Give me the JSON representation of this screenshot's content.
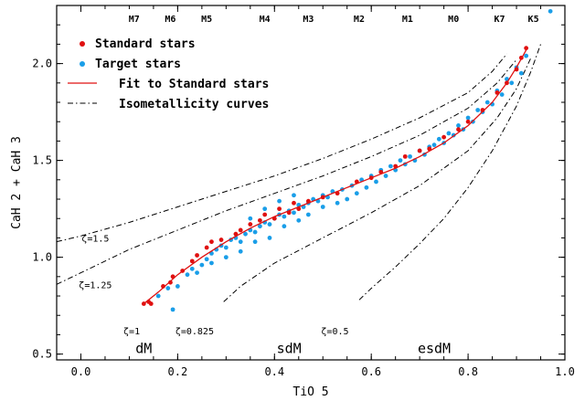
{
  "chart_data": {
    "type": "scatter",
    "xlabel": "TiO 5",
    "ylabel": "CaH 2 + CaH 3",
    "xlim": [
      -0.05,
      1.0
    ],
    "ylim": [
      0.47,
      2.3
    ],
    "x_ticks": [
      0.0,
      0.2,
      0.4,
      0.6,
      0.8,
      1.0
    ],
    "x_tick_labels": [
      "0.0",
      "0.2",
      "0.4",
      "0.6",
      "0.8",
      "1.0"
    ],
    "y_ticks": [
      0.5,
      1.0,
      1.5,
      2.0
    ],
    "y_tick_labels": [
      "0.5",
      "1.0",
      "1.5",
      "2.0"
    ],
    "grid": false,
    "legend": {
      "placement": "top-left",
      "entries": [
        {
          "label": "Standard stars",
          "marker": "dot",
          "color": "#e01010"
        },
        {
          "label": "Target stars",
          "marker": "dot",
          "color": "#1a9ee8"
        },
        {
          "label": "Fit to Standard stars",
          "marker": "line",
          "color": "#e01010"
        },
        {
          "label": "Isometallicity curves",
          "marker": "dashdot",
          "color": "#000000"
        }
      ]
    },
    "spectral_types": [
      {
        "label": "M7",
        "x": 0.11
      },
      {
        "label": "M6",
        "x": 0.185
      },
      {
        "label": "M5",
        "x": 0.26
      },
      {
        "label": "M4",
        "x": 0.38
      },
      {
        "label": "M3",
        "x": 0.47
      },
      {
        "label": "M2",
        "x": 0.575
      },
      {
        "label": "M1",
        "x": 0.675
      },
      {
        "label": "M0",
        "x": 0.77
      },
      {
        "label": "K7",
        "x": 0.865
      },
      {
        "label": "K5",
        "x": 0.935
      }
    ],
    "fit_curve": {
      "name": "Fit to Standard stars",
      "x": [
        0.13,
        0.16,
        0.2,
        0.25,
        0.3,
        0.35,
        0.4,
        0.45,
        0.5,
        0.55,
        0.6,
        0.65,
        0.7,
        0.75,
        0.8,
        0.85,
        0.88,
        0.9,
        0.92
      ],
      "y": [
        0.76,
        0.82,
        0.91,
        1.0,
        1.08,
        1.15,
        1.21,
        1.26,
        1.31,
        1.36,
        1.41,
        1.46,
        1.52,
        1.59,
        1.68,
        1.8,
        1.9,
        1.98,
        2.07
      ]
    },
    "isometallicity_curves": [
      {
        "label": "ζ=1.5",
        "x": [
          -0.05,
          0.0,
          0.1,
          0.2,
          0.3,
          0.4,
          0.5,
          0.6,
          0.7,
          0.8,
          0.85,
          0.88
        ],
        "y": [
          1.08,
          1.11,
          1.18,
          1.26,
          1.34,
          1.42,
          1.51,
          1.61,
          1.72,
          1.85,
          1.96,
          2.05
        ]
      },
      {
        "label": "ζ=1.25",
        "x": [
          -0.05,
          0.0,
          0.1,
          0.2,
          0.3,
          0.4,
          0.5,
          0.6,
          0.7,
          0.8,
          0.86,
          0.9
        ],
        "y": [
          0.86,
          0.92,
          1.04,
          1.14,
          1.24,
          1.33,
          1.42,
          1.52,
          1.63,
          1.77,
          1.9,
          2.02
        ]
      },
      {
        "label": "ζ=0.825",
        "x": [
          0.295,
          0.33,
          0.4,
          0.5,
          0.6,
          0.7,
          0.8,
          0.86,
          0.9,
          0.93
        ],
        "y": [
          0.77,
          0.85,
          0.97,
          1.1,
          1.23,
          1.37,
          1.55,
          1.72,
          1.87,
          2.03
        ]
      },
      {
        "label": "ζ=0.5",
        "x": [
          0.575,
          0.6,
          0.65,
          0.7,
          0.75,
          0.8,
          0.85,
          0.9,
          0.93,
          0.95
        ],
        "y": [
          0.78,
          0.84,
          0.95,
          1.07,
          1.2,
          1.36,
          1.55,
          1.78,
          1.96,
          2.1
        ]
      }
    ],
    "curve_labels": [
      {
        "label": "ζ=1.5",
        "x": 0.03,
        "y": 1.1
      },
      {
        "label": "ζ=1.25",
        "x": 0.03,
        "y": 0.86
      },
      {
        "label": "ζ=1",
        "x": 0.105,
        "y": 0.62
      },
      {
        "label": "ζ=0.825",
        "x": 0.235,
        "y": 0.62
      },
      {
        "label": "ζ=0.5",
        "x": 0.525,
        "y": 0.62
      }
    ],
    "regions": [
      {
        "label": "dM",
        "x": 0.13,
        "y": 0.53
      },
      {
        "label": "sdM",
        "x": 0.43,
        "y": 0.53
      },
      {
        "label": "esdM",
        "x": 0.73,
        "y": 0.53
      }
    ],
    "standard_stars": {
      "name": "Standard stars",
      "points": [
        [
          0.13,
          0.76
        ],
        [
          0.14,
          0.77
        ],
        [
          0.145,
          0.76
        ],
        [
          0.17,
          0.85
        ],
        [
          0.185,
          0.87
        ],
        [
          0.19,
          0.9
        ],
        [
          0.21,
          0.93
        ],
        [
          0.23,
          0.98
        ],
        [
          0.24,
          1.01
        ],
        [
          0.26,
          1.05
        ],
        [
          0.27,
          1.08
        ],
        [
          0.29,
          1.09
        ],
        [
          0.32,
          1.12
        ],
        [
          0.33,
          1.14
        ],
        [
          0.35,
          1.17
        ],
        [
          0.37,
          1.19
        ],
        [
          0.38,
          1.22
        ],
        [
          0.4,
          1.2
        ],
        [
          0.41,
          1.25
        ],
        [
          0.43,
          1.23
        ],
        [
          0.44,
          1.28
        ],
        [
          0.45,
          1.25
        ],
        [
          0.47,
          1.29
        ],
        [
          0.5,
          1.31
        ],
        [
          0.53,
          1.33
        ],
        [
          0.57,
          1.39
        ],
        [
          0.6,
          1.41
        ],
        [
          0.62,
          1.44
        ],
        [
          0.65,
          1.47
        ],
        [
          0.67,
          1.52
        ],
        [
          0.7,
          1.55
        ],
        [
          0.72,
          1.56
        ],
        [
          0.75,
          1.62
        ],
        [
          0.78,
          1.66
        ],
        [
          0.8,
          1.7
        ],
        [
          0.83,
          1.76
        ],
        [
          0.86,
          1.85
        ],
        [
          0.88,
          1.9
        ],
        [
          0.9,
          1.97
        ],
        [
          0.91,
          2.03
        ],
        [
          0.92,
          2.08
        ]
      ]
    },
    "target_stars": {
      "name": "Target stars",
      "points": [
        [
          0.19,
          0.73
        ],
        [
          0.2,
          0.85
        ],
        [
          0.22,
          0.91
        ],
        [
          0.23,
          0.94
        ],
        [
          0.25,
          0.96
        ],
        [
          0.26,
          0.99
        ],
        [
          0.27,
          1.02
        ],
        [
          0.28,
          1.04
        ],
        [
          0.29,
          1.06
        ],
        [
          0.3,
          1.05
        ],
        [
          0.31,
          1.09
        ],
        [
          0.32,
          1.1
        ],
        [
          0.33,
          1.08
        ],
        [
          0.34,
          1.12
        ],
        [
          0.35,
          1.14
        ],
        [
          0.36,
          1.13
        ],
        [
          0.37,
          1.16
        ],
        [
          0.38,
          1.18
        ],
        [
          0.39,
          1.17
        ],
        [
          0.4,
          1.2
        ],
        [
          0.41,
          1.22
        ],
        [
          0.42,
          1.21
        ],
        [
          0.43,
          1.24
        ],
        [
          0.44,
          1.23
        ],
        [
          0.45,
          1.27
        ],
        [
          0.46,
          1.26
        ],
        [
          0.47,
          1.28
        ],
        [
          0.48,
          1.3
        ],
        [
          0.49,
          1.29
        ],
        [
          0.5,
          1.32
        ],
        [
          0.51,
          1.31
        ],
        [
          0.52,
          1.34
        ],
        [
          0.54,
          1.35
        ],
        [
          0.56,
          1.37
        ],
        [
          0.58,
          1.4
        ],
        [
          0.6,
          1.42
        ],
        [
          0.62,
          1.45
        ],
        [
          0.64,
          1.47
        ],
        [
          0.66,
          1.5
        ],
        [
          0.68,
          1.52
        ],
        [
          0.7,
          1.55
        ],
        [
          0.72,
          1.57
        ],
        [
          0.74,
          1.61
        ],
        [
          0.76,
          1.64
        ],
        [
          0.78,
          1.68
        ],
        [
          0.8,
          1.72
        ],
        [
          0.82,
          1.76
        ],
        [
          0.84,
          1.8
        ],
        [
          0.86,
          1.86
        ],
        [
          0.88,
          1.92
        ],
        [
          0.9,
          1.98
        ],
        [
          0.92,
          2.04
        ],
        [
          0.97,
          2.27
        ],
        [
          0.16,
          0.8
        ],
        [
          0.18,
          0.84
        ],
        [
          0.24,
          0.92
        ],
        [
          0.27,
          0.97
        ],
        [
          0.3,
          1.0
        ],
        [
          0.33,
          1.03
        ],
        [
          0.36,
          1.08
        ],
        [
          0.39,
          1.1
        ],
        [
          0.42,
          1.16
        ],
        [
          0.45,
          1.19
        ],
        [
          0.35,
          1.2
        ],
        [
          0.38,
          1.25
        ],
        [
          0.41,
          1.29
        ],
        [
          0.44,
          1.32
        ],
        [
          0.47,
          1.22
        ],
        [
          0.5,
          1.26
        ],
        [
          0.53,
          1.28
        ],
        [
          0.55,
          1.3
        ],
        [
          0.57,
          1.33
        ],
        [
          0.59,
          1.36
        ],
        [
          0.61,
          1.39
        ],
        [
          0.63,
          1.42
        ],
        [
          0.65,
          1.45
        ],
        [
          0.67,
          1.48
        ],
        [
          0.69,
          1.5
        ],
        [
          0.71,
          1.53
        ],
        [
          0.73,
          1.58
        ],
        [
          0.75,
          1.59
        ],
        [
          0.77,
          1.63
        ],
        [
          0.79,
          1.66
        ],
        [
          0.81,
          1.7
        ],
        [
          0.83,
          1.75
        ],
        [
          0.85,
          1.79
        ],
        [
          0.87,
          1.84
        ],
        [
          0.89,
          1.9
        ],
        [
          0.91,
          1.95
        ]
      ]
    }
  }
}
